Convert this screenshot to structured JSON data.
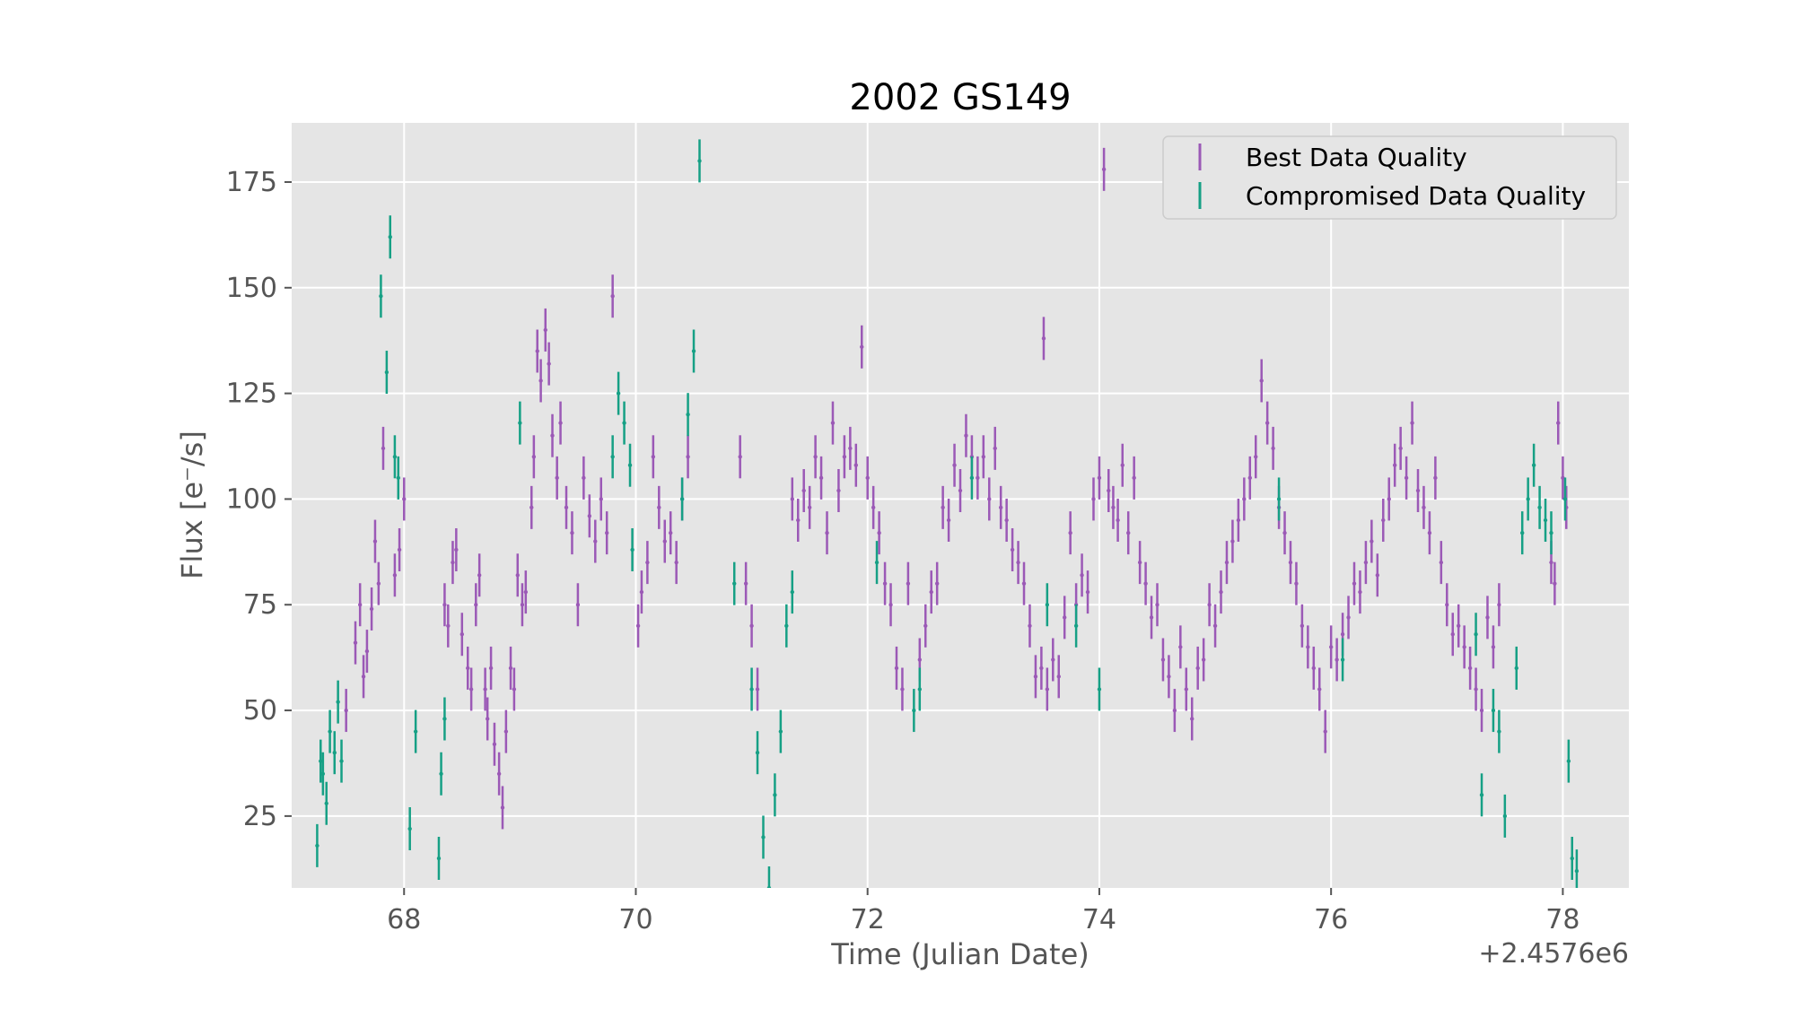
{
  "chart_data": {
    "type": "scatter",
    "title": "2002 GS149",
    "xlabel": "Time (Julian Date)",
    "ylabel": "Flux [e⁻/s]",
    "x_offset_label": "+2.4576e6",
    "xlim": [
      67.03,
      78.57
    ],
    "ylim": [
      8,
      189
    ],
    "x_ticks": [
      68,
      70,
      72,
      74,
      76,
      78
    ],
    "y_ticks": [
      25,
      50,
      75,
      100,
      125,
      150,
      175
    ],
    "grid": true,
    "legend_position": "top-right",
    "series": [
      {
        "name": "Best Data Quality",
        "color": "#9b59b6",
        "points": [
          [
            67.5,
            50
          ],
          [
            67.58,
            66
          ],
          [
            67.62,
            75
          ],
          [
            67.65,
            58
          ],
          [
            67.68,
            64
          ],
          [
            67.72,
            74
          ],
          [
            67.75,
            90
          ],
          [
            67.78,
            80
          ],
          [
            67.82,
            112
          ],
          [
            67.92,
            82
          ],
          [
            67.96,
            88
          ],
          [
            68.0,
            100
          ],
          [
            68.35,
            75
          ],
          [
            68.38,
            70
          ],
          [
            68.42,
            85
          ],
          [
            68.45,
            88
          ],
          [
            68.5,
            68
          ],
          [
            68.55,
            60
          ],
          [
            68.58,
            55
          ],
          [
            68.62,
            75
          ],
          [
            68.65,
            82
          ],
          [
            68.7,
            55
          ],
          [
            68.72,
            48
          ],
          [
            68.75,
            60
          ],
          [
            68.78,
            42
          ],
          [
            68.82,
            35
          ],
          [
            68.85,
            27
          ],
          [
            68.88,
            45
          ],
          [
            68.92,
            60
          ],
          [
            68.95,
            55
          ],
          [
            68.98,
            82
          ],
          [
            69.02,
            75
          ],
          [
            69.05,
            78
          ],
          [
            69.1,
            98
          ],
          [
            69.12,
            110
          ],
          [
            69.15,
            135
          ],
          [
            69.18,
            128
          ],
          [
            69.22,
            140
          ],
          [
            69.25,
            132
          ],
          [
            69.28,
            115
          ],
          [
            69.32,
            105
          ],
          [
            69.35,
            118
          ],
          [
            69.4,
            98
          ],
          [
            69.45,
            92
          ],
          [
            69.5,
            75
          ],
          [
            69.55,
            105
          ],
          [
            69.6,
            96
          ],
          [
            69.65,
            90
          ],
          [
            69.7,
            100
          ],
          [
            69.75,
            92
          ],
          [
            69.8,
            148
          ],
          [
            70.02,
            70
          ],
          [
            70.05,
            78
          ],
          [
            70.1,
            85
          ],
          [
            70.15,
            110
          ],
          [
            70.2,
            98
          ],
          [
            70.25,
            90
          ],
          [
            70.3,
            92
          ],
          [
            70.35,
            85
          ],
          [
            70.4,
            100
          ],
          [
            70.45,
            110
          ],
          [
            70.9,
            110
          ],
          [
            70.95,
            80
          ],
          [
            71.0,
            70
          ],
          [
            71.05,
            55
          ],
          [
            71.35,
            100
          ],
          [
            71.4,
            95
          ],
          [
            71.45,
            102
          ],
          [
            71.5,
            98
          ],
          [
            71.55,
            110
          ],
          [
            71.6,
            105
          ],
          [
            71.65,
            92
          ],
          [
            71.7,
            118
          ],
          [
            71.75,
            102
          ],
          [
            71.8,
            110
          ],
          [
            71.85,
            112
          ],
          [
            71.9,
            108
          ],
          [
            71.95,
            136
          ],
          [
            72.0,
            105
          ],
          [
            72.05,
            98
          ],
          [
            72.1,
            92
          ],
          [
            72.15,
            80
          ],
          [
            72.2,
            75
          ],
          [
            72.25,
            60
          ],
          [
            72.3,
            55
          ],
          [
            72.35,
            80
          ],
          [
            72.45,
            62
          ],
          [
            72.5,
            70
          ],
          [
            72.55,
            78
          ],
          [
            72.6,
            80
          ],
          [
            72.65,
            98
          ],
          [
            72.7,
            95
          ],
          [
            72.75,
            108
          ],
          [
            72.8,
            102
          ],
          [
            72.85,
            115
          ],
          [
            72.9,
            110
          ],
          [
            72.95,
            105
          ],
          [
            73.0,
            110
          ],
          [
            73.05,
            100
          ],
          [
            73.1,
            112
          ],
          [
            73.15,
            98
          ],
          [
            73.2,
            95
          ],
          [
            73.25,
            88
          ],
          [
            73.3,
            85
          ],
          [
            73.35,
            80
          ],
          [
            73.4,
            70
          ],
          [
            73.45,
            58
          ],
          [
            73.5,
            60
          ],
          [
            73.52,
            138
          ],
          [
            73.55,
            55
          ],
          [
            73.6,
            62
          ],
          [
            73.65,
            58
          ],
          [
            73.7,
            72
          ],
          [
            73.75,
            92
          ],
          [
            73.8,
            75
          ],
          [
            73.85,
            82
          ],
          [
            73.9,
            78
          ],
          [
            73.95,
            100
          ],
          [
            74.0,
            105
          ],
          [
            74.04,
            178
          ],
          [
            74.08,
            102
          ],
          [
            74.12,
            98
          ],
          [
            74.16,
            95
          ],
          [
            74.2,
            108
          ],
          [
            74.25,
            92
          ],
          [
            74.3,
            105
          ],
          [
            74.35,
            85
          ],
          [
            74.4,
            80
          ],
          [
            74.45,
            72
          ],
          [
            74.5,
            75
          ],
          [
            74.55,
            62
          ],
          [
            74.6,
            58
          ],
          [
            74.65,
            50
          ],
          [
            74.7,
            65
          ],
          [
            74.75,
            55
          ],
          [
            74.8,
            48
          ],
          [
            74.85,
            60
          ],
          [
            74.9,
            62
          ],
          [
            74.95,
            75
          ],
          [
            75.0,
            70
          ],
          [
            75.05,
            78
          ],
          [
            75.1,
            85
          ],
          [
            75.15,
            90
          ],
          [
            75.2,
            95
          ],
          [
            75.25,
            100
          ],
          [
            75.3,
            105
          ],
          [
            75.35,
            110
          ],
          [
            75.4,
            128
          ],
          [
            75.45,
            118
          ],
          [
            75.5,
            112
          ],
          [
            75.55,
            98
          ],
          [
            75.6,
            92
          ],
          [
            75.65,
            85
          ],
          [
            75.7,
            80
          ],
          [
            75.75,
            70
          ],
          [
            75.8,
            65
          ],
          [
            75.85,
            60
          ],
          [
            75.9,
            55
          ],
          [
            75.95,
            45
          ],
          [
            76.0,
            65
          ],
          [
            76.05,
            62
          ],
          [
            76.1,
            68
          ],
          [
            76.15,
            72
          ],
          [
            76.2,
            80
          ],
          [
            76.25,
            78
          ],
          [
            76.3,
            85
          ],
          [
            76.35,
            90
          ],
          [
            76.4,
            82
          ],
          [
            76.45,
            95
          ],
          [
            76.5,
            100
          ],
          [
            76.55,
            108
          ],
          [
            76.6,
            112
          ],
          [
            76.65,
            105
          ],
          [
            76.7,
            118
          ],
          [
            76.75,
            102
          ],
          [
            76.8,
            98
          ],
          [
            76.85,
            92
          ],
          [
            76.9,
            105
          ],
          [
            76.95,
            85
          ],
          [
            77.0,
            75
          ],
          [
            77.05,
            68
          ],
          [
            77.1,
            70
          ],
          [
            77.15,
            65
          ],
          [
            77.2,
            60
          ],
          [
            77.25,
            55
          ],
          [
            77.3,
            50
          ],
          [
            77.35,
            72
          ],
          [
            77.4,
            65
          ],
          [
            77.45,
            75
          ],
          [
            77.9,
            85
          ],
          [
            77.93,
            80
          ],
          [
            77.96,
            118
          ],
          [
            78.0,
            105
          ],
          [
            78.03,
            98
          ]
        ]
      },
      {
        "name": "Compromised Data Quality",
        "color": "#16a085",
        "points": [
          [
            67.25,
            18
          ],
          [
            67.28,
            38
          ],
          [
            67.3,
            35
          ],
          [
            67.33,
            28
          ],
          [
            67.36,
            45
          ],
          [
            67.4,
            40
          ],
          [
            67.43,
            52
          ],
          [
            67.46,
            38
          ],
          [
            67.8,
            148
          ],
          [
            67.85,
            130
          ],
          [
            67.88,
            162
          ],
          [
            67.92,
            110
          ],
          [
            67.95,
            105
          ],
          [
            68.05,
            22
          ],
          [
            68.1,
            45
          ],
          [
            68.3,
            15
          ],
          [
            68.32,
            35
          ],
          [
            68.35,
            48
          ],
          [
            69.0,
            118
          ],
          [
            69.8,
            110
          ],
          [
            69.85,
            125
          ],
          [
            69.9,
            118
          ],
          [
            69.95,
            108
          ],
          [
            69.97,
            88
          ],
          [
            70.4,
            100
          ],
          [
            70.45,
            120
          ],
          [
            70.5,
            135
          ],
          [
            70.55,
            180
          ],
          [
            70.85,
            80
          ],
          [
            71.0,
            55
          ],
          [
            71.05,
            40
          ],
          [
            71.1,
            20
          ],
          [
            71.15,
            8
          ],
          [
            71.2,
            30
          ],
          [
            71.25,
            45
          ],
          [
            71.3,
            70
          ],
          [
            71.35,
            78
          ],
          [
            72.08,
            85
          ],
          [
            72.4,
            50
          ],
          [
            72.45,
            55
          ],
          [
            72.9,
            105
          ],
          [
            73.55,
            75
          ],
          [
            73.8,
            70
          ],
          [
            74.0,
            55
          ],
          [
            75.55,
            100
          ],
          [
            76.1,
            62
          ],
          [
            77.25,
            68
          ],
          [
            77.3,
            30
          ],
          [
            77.4,
            50
          ],
          [
            77.45,
            45
          ],
          [
            77.5,
            25
          ],
          [
            77.6,
            60
          ],
          [
            77.65,
            92
          ],
          [
            77.7,
            100
          ],
          [
            77.75,
            108
          ],
          [
            77.8,
            98
          ],
          [
            77.85,
            95
          ],
          [
            77.9,
            92
          ],
          [
            78.02,
            100
          ],
          [
            78.05,
            38
          ],
          [
            78.08,
            15
          ],
          [
            78.12,
            12
          ]
        ]
      }
    ]
  }
}
